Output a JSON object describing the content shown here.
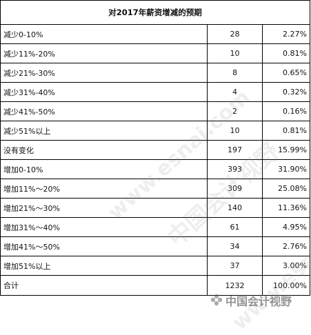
{
  "table": {
    "title": "对2017年薪资增减的预期",
    "rows": [
      {
        "label": "减少0-10%",
        "count": "28",
        "percent": "2.27%"
      },
      {
        "label": "减少11%-20%",
        "count": "10",
        "percent": "0.81%"
      },
      {
        "label": "减少21%-30%",
        "count": "8",
        "percent": "0.65%"
      },
      {
        "label": "减少31%-40%",
        "count": "4",
        "percent": "0.32%"
      },
      {
        "label": "减少41%-50%",
        "count": "2",
        "percent": "0.16%"
      },
      {
        "label": "减少51%以上",
        "count": "10",
        "percent": "0.81%"
      },
      {
        "label": "没有变化",
        "count": "197",
        "percent": "15.99%"
      },
      {
        "label": "增加0-10%",
        "count": "393",
        "percent": "31.90%"
      },
      {
        "label": "增加11%～20%",
        "count": "309",
        "percent": "25.08%"
      },
      {
        "label": "增加21%～30%",
        "count": "140",
        "percent": "11.36%"
      },
      {
        "label": "增加31%～40%",
        "count": "61",
        "percent": "4.95%"
      },
      {
        "label": "增加41%～50%",
        "count": "34",
        "percent": "2.76%"
      },
      {
        "label": "增加51%以上",
        "count": "37",
        "percent": "3.00%"
      },
      {
        "label": "合计",
        "count": "1232",
        "percent": "100.00%"
      }
    ]
  },
  "watermark": {
    "site_url": "www.esnai.com",
    "site_name": "中国会计视野",
    "logo_text": "中国会计视野"
  }
}
